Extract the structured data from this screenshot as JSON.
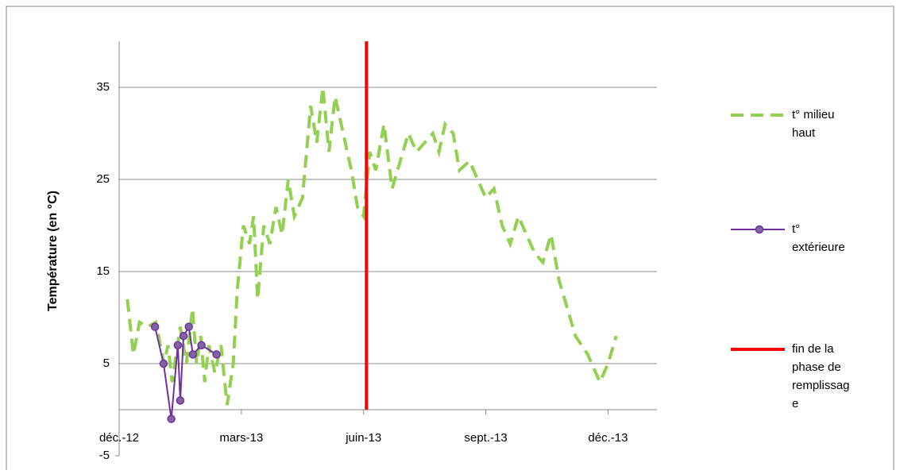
{
  "chart_data": {
    "type": "line",
    "ylabel": "Température (en °C)",
    "xlim": [
      0,
      13.2
    ],
    "xticks": [
      {
        "value": 0,
        "label": "déc.-12"
      },
      {
        "value": 3,
        "label": "mars-13"
      },
      {
        "value": 6,
        "label": "juin-13"
      },
      {
        "value": 9,
        "label": "sept.-13"
      },
      {
        "value": 12,
        "label": "déc.-13"
      }
    ],
    "ylim": [
      -5,
      40
    ],
    "yticks": [
      -5,
      5,
      15,
      25,
      35
    ],
    "grid": true,
    "legend": "right",
    "series": [
      {
        "name": "t° milieu haut",
        "color": "#92d050",
        "style": "dashed",
        "x": [
          0.2,
          0.35,
          0.5,
          0.7,
          0.9,
          1.1,
          1.2,
          1.3,
          1.5,
          1.65,
          1.8,
          1.9,
          2.0,
          2.1,
          2.2,
          2.35,
          2.5,
          2.65,
          2.8,
          2.9,
          3.05,
          3.2,
          3.3,
          3.4,
          3.55,
          3.7,
          3.85,
          4.0,
          4.15,
          4.3,
          4.5,
          4.7,
          4.85,
          5.0,
          5.15,
          5.3,
          5.5,
          5.7,
          5.85,
          6.0,
          6.15,
          6.3,
          6.5,
          6.7,
          6.9,
          7.1,
          7.3,
          7.5,
          7.7,
          7.85,
          8.0,
          8.2,
          8.35,
          8.6,
          8.8,
          9.0,
          9.2,
          9.4,
          9.6,
          9.8,
          10.0,
          10.2,
          10.4,
          10.6,
          10.8,
          11.0,
          11.2,
          11.5,
          11.8,
          12.0,
          12.2
        ],
        "values": [
          12,
          6,
          9.5,
          9,
          9.5,
          5,
          7,
          3,
          9,
          5,
          11,
          5,
          8,
          3,
          7,
          4,
          7,
          0.5,
          5,
          13,
          20,
          18,
          21,
          12,
          20,
          18,
          22,
          19,
          25,
          21,
          23,
          33,
          29,
          35,
          28,
          34,
          30,
          26,
          22,
          21,
          28,
          26,
          31,
          24,
          27,
          30,
          28,
          29,
          30,
          28,
          31,
          30,
          26,
          27,
          25,
          23,
          24,
          20,
          18,
          21,
          19,
          17,
          16,
          19,
          14,
          11,
          8,
          6,
          3,
          5,
          8
        ]
      },
      {
        "name": "t° extérieure",
        "color": "#7030a0",
        "marker": "circle",
        "x": [
          0.88,
          1.09,
          1.28,
          1.44,
          1.5,
          1.58,
          1.71,
          1.81,
          2.02,
          2.39
        ],
        "values": [
          9,
          5,
          -1,
          7,
          1,
          8,
          9,
          6,
          7,
          6
        ]
      },
      {
        "name": "fin de la phase de remplissage",
        "color": "#ff0000",
        "x": [
          6.07,
          6.07
        ],
        "values": [
          0,
          40
        ]
      }
    ]
  }
}
